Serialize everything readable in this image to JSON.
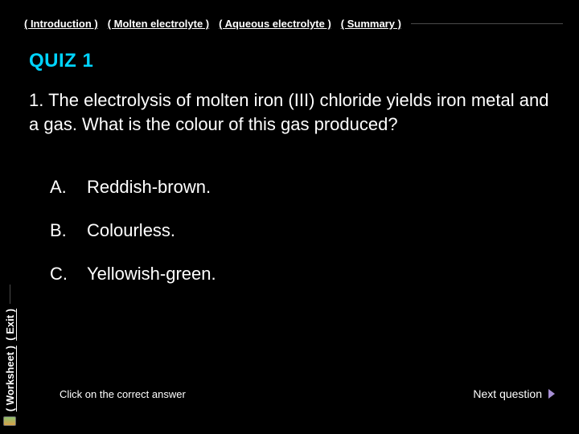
{
  "colors": {
    "background": "#000000",
    "text": "#ffffff",
    "title": "#00d4ff",
    "rule": "#4a4a4a",
    "arrow": "#a78fd4"
  },
  "typography": {
    "nav_fontsize": 13,
    "title_fontsize": 24,
    "question_fontsize": 22,
    "option_fontsize": 22,
    "hint_fontsize": 13,
    "next_fontsize": 14
  },
  "topnav": {
    "items": [
      {
        "label": "( Introduction )"
      },
      {
        "label": "( Molten electrolyte )"
      },
      {
        "label": "( Aqueous electrolyte )"
      },
      {
        "label": "( Summary )"
      }
    ]
  },
  "sidenav": {
    "items": [
      {
        "label": "( Exit )"
      },
      {
        "label": "( Worksheet )"
      }
    ]
  },
  "quiz": {
    "title": "QUIZ 1",
    "question": "1. The electrolysis of molten iron (III) chloride yields iron metal and a gas. What is the colour of this gas produced?",
    "options": [
      {
        "letter": "A.",
        "text": "Reddish-brown."
      },
      {
        "letter": "B.",
        "text": "Colourless."
      },
      {
        "letter": "C.",
        "text": "Yellowish-green."
      }
    ],
    "hint": "Click on the correct answer",
    "next_label": "Next question"
  }
}
